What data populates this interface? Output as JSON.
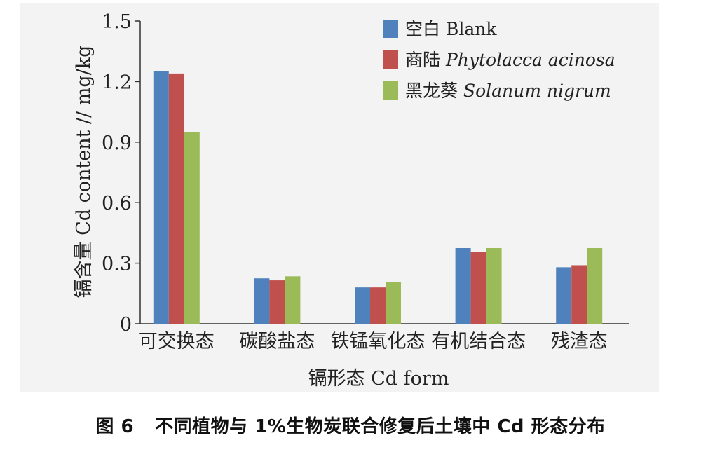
{
  "chart_data": {
    "type": "bar",
    "title": "",
    "xlabel": "镉形态 Cd form",
    "ylabel": "镉含量 Cd content // mg/kg",
    "ylim": [
      0,
      1.5
    ],
    "yticks": [
      "0",
      "0.3",
      "0.6",
      "0.9",
      "1.2",
      "1.5"
    ],
    "ytick_values": [
      0,
      0.3,
      0.6,
      0.9,
      1.2,
      1.5
    ],
    "categories": [
      "可交换态",
      "碳酸盐态",
      "铁锰氧化态",
      "有机结合态",
      "残渣态"
    ],
    "series": [
      {
        "name": "空白 Blank",
        "name_cn": "空白",
        "name_latin": "Blank",
        "color": "#4f81bd",
        "values": [
          1.25,
          0.225,
          0.18,
          0.375,
          0.28
        ]
      },
      {
        "name": "商陆 Phytolacca acinosa",
        "name_cn": "商陆",
        "name_latin": "Phytolacca acinosa",
        "color": "#c0504d",
        "values": [
          1.24,
          0.215,
          0.18,
          0.355,
          0.29
        ]
      },
      {
        "name": "黑龙葵 Solanum nigrum",
        "name_cn": "黑龙葵",
        "name_latin": "Solanum nigrum",
        "color": "#9bbb59",
        "values": [
          0.95,
          0.235,
          0.205,
          0.375,
          0.375
        ]
      }
    ],
    "legend_position": "top-right",
    "grid": false
  },
  "caption": {
    "label": "图 6",
    "text": "不同植物与 1%生物炭联合修复后土壤中 Cd 形态分布"
  }
}
